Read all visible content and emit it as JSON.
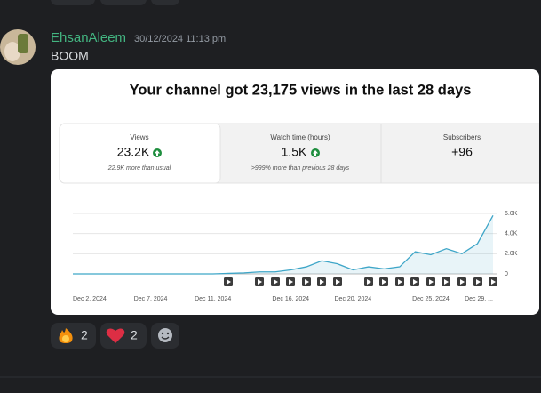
{
  "message": {
    "author": "EhsanAleem",
    "timestamp": "30/12/2024 11:13 pm",
    "text": "BOOM"
  },
  "embed": {
    "title": "Your channel got 23,175 views in the last 28 days",
    "stats": [
      {
        "label": "Views",
        "value": "23.2K",
        "note": "22.9K more than usual"
      },
      {
        "label": "Watch time (hours)",
        "value": "1.5K",
        "note": ">999% more than previous 28 days"
      },
      {
        "label": "Subscribers",
        "value": "+96"
      }
    ],
    "chart_data": {
      "type": "line",
      "categories": [
        "Dec 2, 2024",
        null,
        null,
        null,
        null,
        "Dec 7, 2024",
        null,
        null,
        null,
        "Dec 11, 2024",
        null,
        null,
        null,
        null,
        "Dec 16, 2024",
        null,
        null,
        null,
        "Dec 20, 2024",
        null,
        null,
        null,
        null,
        "Dec 25, 2024",
        null,
        null,
        null,
        "Dec 29, ..."
      ],
      "series": [
        {
          "color": "#3ea6c8",
          "values": [
            0,
            0,
            0,
            0,
            0,
            0,
            0,
            0,
            0,
            0,
            50,
            100,
            200,
            200,
            400,
            700,
            1300,
            1000,
            400,
            700,
            500,
            700,
            2200,
            1900,
            2500,
            2000,
            3000,
            5800
          ]
        }
      ],
      "ylim": [
        0,
        6000
      ],
      "yticks": [
        0,
        {
          "value": 2000,
          "label": "2.0K"
        },
        {
          "value": 4000,
          "label": "4.0K"
        },
        {
          "value": 6000,
          "label": "6.0K"
        }
      ],
      "grid": true
    }
  },
  "reactions": [
    {
      "count": 2
    },
    {
      "count": 2
    }
  ]
}
